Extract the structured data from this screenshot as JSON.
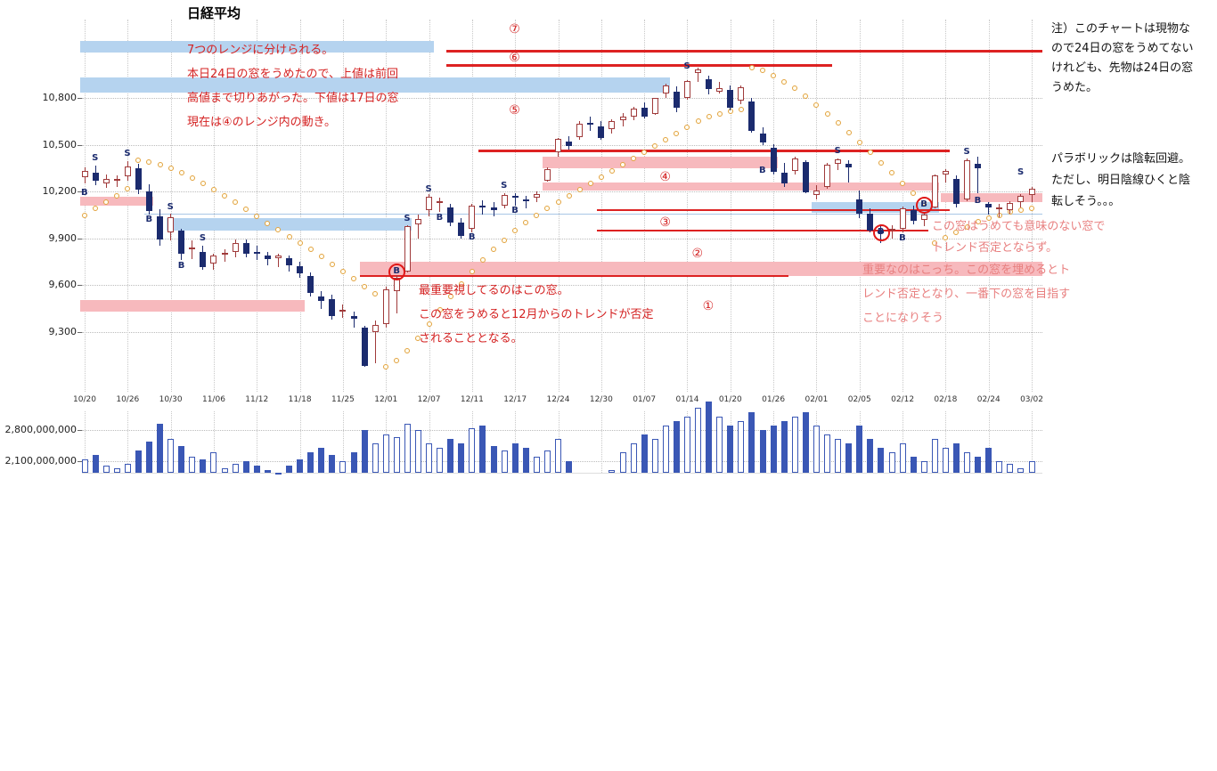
{
  "title": "日経平均",
  "colors": {
    "up_fill": "#ffffff",
    "up_border": "#a03a3a",
    "down_fill": "#1b2b6e",
    "band_pink": "#f7b9bd",
    "band_blue": "#b5d3ef",
    "red_line": "#dd2222",
    "blue_line": "#a9c7e6",
    "vol_blue": "#3a57b5",
    "red_text": "#d42222",
    "pink_text": "#e87f7f",
    "black_text": "#111111"
  },
  "annotations": {
    "red_block_ranges": [
      "7つのレンジに分けられる。",
      "本日24日の窓をうめたので、上値は前回",
      "高値まで切りあがった。下値は17日の窓",
      "現在は④のレンジ内の動き。"
    ],
    "red_block_window": [
      "最重要視してるのはこの窓。",
      "この窓をうめると12月からのトレンドが否定",
      "されることとなる。"
    ],
    "pink_block_meaningless": [
      "この窓はうめても意味のない窓で",
      "トレンド否定とならず。"
    ],
    "pink_block_important": [
      "重要なのはこっち。この窓を埋めるとト",
      "レンド否定となり、一番下の窓を目指す",
      "ことになりそう"
    ],
    "note_top_right": [
      "注）このチャートは現物な",
      "ので24日の窓をうめてない",
      "けれども、先物は24日の窓",
      "うめた。"
    ],
    "note_parabolic": [
      "パラボリックは陰転回避。",
      "ただし、明日陰線ひくと陰",
      "転しそう。。。"
    ]
  },
  "chart_data": {
    "type": "candlestick",
    "instrument": "日経平均",
    "ylim": [
      9080,
      11320
    ],
    "y_ticks": [
      {
        "v": 10800,
        "label": "10,800"
      },
      {
        "v": 10500,
        "label": "10,500"
      },
      {
        "v": 10200,
        "label": "10,200"
      },
      {
        "v": 9900,
        "label": "9,900"
      },
      {
        "v": 9600,
        "label": "9,600"
      },
      {
        "v": 9300,
        "label": "9,300"
      }
    ],
    "x_ticks": [
      {
        "i": 0,
        "label": "10/20"
      },
      {
        "i": 4,
        "label": "10/26"
      },
      {
        "i": 8,
        "label": "10/30"
      },
      {
        "i": 12,
        "label": "11/06"
      },
      {
        "i": 16,
        "label": "11/12"
      },
      {
        "i": 20,
        "label": "11/18"
      },
      {
        "i": 24,
        "label": "11/25"
      },
      {
        "i": 28,
        "label": "12/01"
      },
      {
        "i": 32,
        "label": "12/07"
      },
      {
        "i": 36,
        "label": "12/11"
      },
      {
        "i": 40,
        "label": "12/17"
      },
      {
        "i": 44,
        "label": "12/24"
      },
      {
        "i": 48,
        "label": "12/30"
      },
      {
        "i": 52,
        "label": "01/07"
      },
      {
        "i": 56,
        "label": "01/14"
      },
      {
        "i": 60,
        "label": "01/20"
      },
      {
        "i": 64,
        "label": "01/26"
      },
      {
        "i": 68,
        "label": "02/01"
      },
      {
        "i": 72,
        "label": "02/05"
      },
      {
        "i": 76,
        "label": "02/12"
      },
      {
        "i": 80,
        "label": "02/18"
      },
      {
        "i": 84,
        "label": "02/24"
      },
      {
        "i": 88,
        "label": "03/02"
      }
    ],
    "candles": [
      [
        "10/20",
        10290,
        10355,
        10255,
        10333
      ],
      [
        "10/21",
        10320,
        10368,
        10240,
        10267
      ],
      [
        "10/22",
        10255,
        10312,
        10222,
        10282
      ],
      [
        "10/23",
        10270,
        10306,
        10228,
        10283
      ],
      [
        "10/26",
        10300,
        10397,
        10270,
        10362
      ],
      [
        "10/27",
        10350,
        10376,
        10185,
        10212
      ],
      [
        "10/28",
        10200,
        10246,
        10055,
        10075
      ],
      [
        "10/29",
        10040,
        10086,
        9856,
        9891
      ],
      [
        "10/30",
        9940,
        10056,
        9890,
        10034
      ],
      [
        "11/02",
        9950,
        9962,
        9762,
        9802
      ],
      [
        "11/04",
        9830,
        9886,
        9765,
        9844
      ],
      [
        "11/05",
        9815,
        9856,
        9700,
        9717
      ],
      [
        "11/06",
        9740,
        9802,
        9700,
        9789
      ],
      [
        "11/09",
        9800,
        9832,
        9752,
        9808
      ],
      [
        "11/10",
        9815,
        9892,
        9780,
        9871
      ],
      [
        "11/11",
        9870,
        9896,
        9780,
        9804
      ],
      [
        "11/12",
        9815,
        9852,
        9760,
        9804
      ],
      [
        "11/13",
        9790,
        9816,
        9730,
        9770
      ],
      [
        "11/16",
        9775,
        9802,
        9715,
        9791
      ],
      [
        "11/17",
        9775,
        9792,
        9690,
        9729
      ],
      [
        "11/18",
        9720,
        9752,
        9650,
        9676
      ],
      [
        "11/19",
        9660,
        9682,
        9530,
        9549
      ],
      [
        "11/20",
        9530,
        9562,
        9450,
        9497
      ],
      [
        "11/24",
        9510,
        9542,
        9380,
        9401
      ],
      [
        "11/25",
        9430,
        9476,
        9390,
        9441
      ],
      [
        "11/26",
        9400,
        9432,
        9330,
        9383
      ],
      [
        "11/27",
        9330,
        9342,
        9076,
        9081
      ],
      [
        "11/30",
        9300,
        9372,
        9100,
        9345
      ],
      [
        "12/01",
        9350,
        9590,
        9330,
        9572
      ],
      [
        "12/02",
        9560,
        9666,
        9420,
        9650
      ],
      [
        "12/03",
        9690,
        9982,
        9680,
        9977
      ],
      [
        "12/04",
        9990,
        10052,
        9900,
        10022
      ],
      [
        "12/07",
        10080,
        10182,
        10040,
        10167
      ],
      [
        "12/08",
        10130,
        10162,
        10070,
        10141
      ],
      [
        "12/09",
        10100,
        10122,
        9980,
        10004
      ],
      [
        "12/10",
        10000,
        10032,
        9900,
        9918
      ],
      [
        "12/11",
        9960,
        10122,
        9940,
        10108
      ],
      [
        "12/14",
        10112,
        10142,
        10050,
        10106
      ],
      [
        "12/15",
        10100,
        10132,
        10040,
        10084
      ],
      [
        "12/16",
        10110,
        10192,
        10090,
        10178
      ],
      [
        "12/17",
        10172,
        10192,
        10110,
        10164
      ],
      [
        "12/18",
        10150,
        10172,
        10090,
        10142
      ],
      [
        "12/21",
        10160,
        10202,
        10130,
        10184
      ],
      [
        "12/22",
        10270,
        10356,
        10262,
        10345
      ],
      [
        "12/24",
        10450,
        10546,
        10426,
        10536
      ],
      [
        "12/25",
        10520,
        10552,
        10470,
        10494
      ],
      [
        "12/28",
        10550,
        10652,
        10530,
        10634
      ],
      [
        "12/29",
        10640,
        10682,
        10590,
        10638
      ],
      [
        "12/30",
        10620,
        10652,
        10530,
        10546
      ],
      [
        "01/04",
        10600,
        10662,
        10570,
        10654
      ],
      [
        "01/05",
        10660,
        10702,
        10620,
        10681
      ],
      [
        "01/06",
        10680,
        10742,
        10660,
        10731
      ],
      [
        "01/07",
        10740,
        10772,
        10670,
        10681
      ],
      [
        "01/08",
        10700,
        10802,
        10690,
        10798
      ],
      [
        "01/12",
        10830,
        10892,
        10800,
        10879
      ],
      [
        "01/13",
        10840,
        10872,
        10710,
        10736
      ],
      [
        "01/14",
        10800,
        10912,
        10790,
        10907
      ],
      [
        "01/15",
        10960,
        10996,
        10900,
        10982
      ],
      [
        "01/18",
        10920,
        10942,
        10820,
        10855
      ],
      [
        "01/19",
        10840,
        10902,
        10830,
        10865
      ],
      [
        "01/20",
        10850,
        10882,
        10720,
        10737
      ],
      [
        "01/21",
        10780,
        10882,
        10760,
        10868
      ],
      [
        "01/22",
        10780,
        10802,
        10580,
        10590
      ],
      [
        "01/25",
        10570,
        10612,
        10500,
        10512
      ],
      [
        "01/26",
        10480,
        10502,
        10310,
        10325
      ],
      [
        "01/27",
        10320,
        10382,
        10230,
        10252
      ],
      [
        "01/28",
        10330,
        10422,
        10310,
        10414
      ],
      [
        "01/29",
        10390,
        10402,
        10190,
        10198
      ],
      [
        "02/01",
        10180,
        10242,
        10150,
        10205
      ],
      [
        "02/02",
        10230,
        10382,
        10220,
        10371
      ],
      [
        "02/03",
        10380,
        10412,
        10340,
        10404
      ],
      [
        "02/04",
        10380,
        10402,
        10260,
        10355
      ],
      [
        "02/05",
        10150,
        10205,
        10030,
        10057
      ],
      [
        "02/08",
        10060,
        10092,
        9940,
        9951
      ],
      [
        "02/09",
        9950,
        9992,
        9870,
        9932
      ],
      [
        "02/10",
        9950,
        9982,
        9900,
        9963
      ],
      [
        "02/12",
        9960,
        10102,
        9940,
        10092
      ],
      [
        "02/15",
        10080,
        10112,
        9990,
        10013
      ],
      [
        "02/16",
        10020,
        10062,
        9980,
        10054
      ],
      [
        "02/17",
        10100,
        10310,
        10090,
        10306
      ],
      [
        "02/18",
        10310,
        10342,
        10260,
        10335
      ],
      [
        "02/19",
        10280,
        10302,
        10100,
        10123
      ],
      [
        "02/22",
        10150,
        10412,
        10140,
        10400
      ],
      [
        "02/23",
        10380,
        10422,
        10192,
        10352
      ],
      [
        "02/24",
        10120,
        10130,
        10050,
        10101
      ],
      [
        "02/25",
        10090,
        10120,
        10038,
        10101
      ],
      [
        "02/26",
        10080,
        10140,
        10060,
        10126
      ],
      [
        "03/01",
        10130,
        10182,
        10100,
        10172
      ],
      [
        "03/02",
        10180,
        10228,
        10130,
        10221
      ]
    ],
    "sar": [
      10050,
      10090,
      10130,
      10175,
      10220,
      10400,
      10388,
      10370,
      10348,
      10320,
      10288,
      10253,
      10215,
      10175,
      10132,
      10088,
      10042,
      9998,
      9955,
      9912,
      9870,
      9828,
      9782,
      9735,
      9688,
      9640,
      9592,
      9545,
      9080,
      9120,
      9180,
      9260,
      9350,
      9440,
      9530,
      9610,
      9690,
      9760,
      9830,
      9890,
      9950,
      10000,
      10050,
      10090,
      10130,
      10170,
      10210,
      10250,
      10290,
      10330,
      10370,
      10410,
      10450,
      10490,
      10530,
      10570,
      10610,
      10650,
      10680,
      10700,
      10715,
      10725,
      10995,
      10975,
      10945,
      10905,
      10860,
      10810,
      10755,
      10700,
      10640,
      10580,
      10515,
      10450,
      10385,
      10320,
      10255,
      10190,
      10125,
      9870,
      9905,
      9940,
      9975,
      10005,
      10030,
      10050,
      10068,
      10082,
      10095
    ],
    "markers": [
      [
        0,
        "B",
        10190,
        0
      ],
      [
        1,
        "S",
        10410,
        0
      ],
      [
        4,
        "S",
        10440,
        0
      ],
      [
        6,
        "B",
        10020,
        0
      ],
      [
        8,
        "S",
        10100,
        0
      ],
      [
        9,
        "B",
        9720,
        0
      ],
      [
        11,
        "S",
        9900,
        0
      ],
      [
        29,
        "B",
        9685,
        1
      ],
      [
        30,
        "S",
        10025,
        0
      ],
      [
        32,
        "S",
        10215,
        0
      ],
      [
        33,
        "B",
        10030,
        0
      ],
      [
        36,
        "B",
        9905,
        0
      ],
      [
        39,
        "S",
        10235,
        0
      ],
      [
        40,
        "B",
        10075,
        0
      ],
      [
        56,
        "S",
        11000,
        0
      ],
      [
        63,
        "B",
        10330,
        0
      ],
      [
        70,
        "S",
        10455,
        0
      ],
      [
        74,
        "B",
        9940,
        1
      ],
      [
        76,
        "B",
        9900,
        0
      ],
      [
        78,
        "B",
        10118,
        1
      ],
      [
        82,
        "S",
        10450,
        0
      ],
      [
        83,
        "B",
        10140,
        0
      ],
      [
        87,
        "S",
        10320,
        0
      ]
    ],
    "bands": [
      [
        0,
        32,
        11090,
        11165,
        "blue"
      ],
      [
        0,
        54,
        10835,
        10930,
        "blue"
      ],
      [
        0,
        6,
        10110,
        10168,
        "pink"
      ],
      [
        8,
        30,
        9952,
        10028,
        "blue"
      ],
      [
        0,
        20,
        9432,
        9508,
        "pink"
      ],
      [
        26,
        88,
        9658,
        9748,
        "pink"
      ],
      [
        43,
        64,
        10352,
        10422,
        "pink"
      ],
      [
        43,
        79,
        10205,
        10260,
        "pink"
      ],
      [
        68,
        79,
        10062,
        10130,
        "blue"
      ],
      [
        80,
        88,
        10130,
        10192,
        "pink"
      ]
    ],
    "red_lines": [
      [
        34,
        89,
        11100,
        3
      ],
      [
        34,
        69,
        11010,
        3
      ],
      [
        37,
        80,
        10460,
        3
      ],
      [
        48,
        80,
        10080,
        2
      ],
      [
        48,
        78,
        9950,
        2
      ],
      [
        26,
        65,
        9657,
        2
      ]
    ],
    "blue_lines": [
      [
        6,
        89,
        10058
      ]
    ],
    "range_labels": [
      [
        "⑦",
        40,
        11240
      ],
      [
        "⑥",
        40,
        11055
      ],
      [
        "⑤",
        40,
        10720
      ],
      [
        "④",
        54,
        10290
      ],
      [
        "③",
        54,
        10000
      ],
      [
        "②",
        57,
        9800
      ],
      [
        "①",
        58,
        9465
      ]
    ],
    "volume": {
      "axis": [
        {
          "v": 2.8,
          "label": "2,800,000,000"
        },
        {
          "v": 2.1,
          "label": "2,100,000,000"
        }
      ],
      "values": [
        2.15,
        2.25,
        2.0,
        1.95,
        2.05,
        2.35,
        2.55,
        2.95,
        2.6,
        2.45,
        2.2,
        2.15,
        2.3,
        1.95,
        2.05,
        2.1,
        2.0,
        1.9,
        1.85,
        2.0,
        2.15,
        2.3,
        2.4,
        2.25,
        2.1,
        2.3,
        2.8,
        2.5,
        2.7,
        2.65,
        2.95,
        2.8,
        2.5,
        2.4,
        2.6,
        2.5,
        2.85,
        2.9,
        2.45,
        2.35,
        2.5,
        2.4,
        2.2,
        2.35,
        2.6,
        2.1,
        1.75,
        1.7,
        1.65,
        1.9,
        2.3,
        2.5,
        2.7,
        2.6,
        2.9,
        3.0,
        3.1,
        3.3,
        3.45,
        3.1,
        2.9,
        3.0,
        3.2,
        2.8,
        2.9,
        3.0,
        3.1,
        3.2,
        2.9,
        2.7,
        2.6,
        2.5,
        2.9,
        2.6,
        2.4,
        2.3,
        2.5,
        2.2,
        2.1,
        2.6,
        2.4,
        2.5,
        2.3,
        2.2,
        2.4,
        2.1,
        2.05,
        1.95,
        2.1
      ]
    }
  }
}
